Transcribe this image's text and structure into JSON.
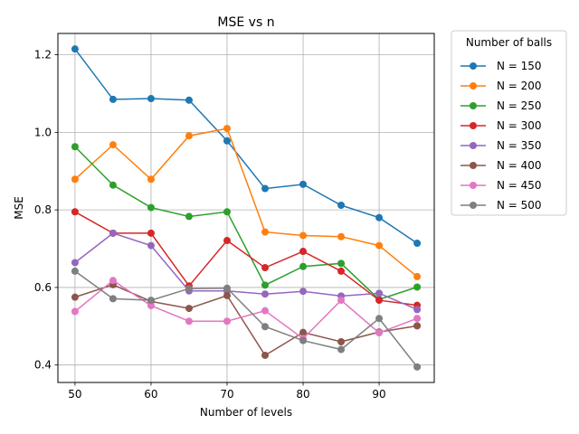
{
  "chart_data": {
    "type": "line",
    "title": "MSE vs n",
    "xlabel": "Number of levels",
    "ylabel": "MSE",
    "xlim": [
      47.75,
      97.25
    ],
    "ylim": [
      0.355,
      1.255
    ],
    "xticks": [
      50,
      60,
      70,
      80,
      90
    ],
    "yticks": [
      0.4,
      0.6,
      0.8,
      1.0,
      1.2
    ],
    "ytick_labels": [
      "0.4",
      "0.6",
      "0.8",
      "1.0",
      "1.2"
    ],
    "grid": true,
    "legend": {
      "title": "Number of balls",
      "placement": "outside-right-top"
    },
    "x": [
      50,
      55,
      60,
      65,
      70,
      75,
      80,
      85,
      90,
      95
    ],
    "series": [
      {
        "name": "N = 150",
        "color": "#1f77b4",
        "values": [
          1.215,
          1.085,
          1.087,
          1.083,
          0.978,
          0.855,
          0.866,
          0.812,
          0.78,
          0.714
        ]
      },
      {
        "name": "N = 200",
        "color": "#ff7f0e",
        "values": [
          0.879,
          0.968,
          0.879,
          0.991,
          1.01,
          0.743,
          0.734,
          0.731,
          0.708,
          0.628
        ]
      },
      {
        "name": "N = 250",
        "color": "#2ca02c",
        "values": [
          0.963,
          0.864,
          0.806,
          0.783,
          0.795,
          0.606,
          0.654,
          0.662,
          0.569,
          0.601
        ]
      },
      {
        "name": "N = 300",
        "color": "#d62728",
        "values": [
          0.795,
          0.74,
          0.74,
          0.604,
          0.721,
          0.651,
          0.693,
          0.642,
          0.567,
          0.554
        ]
      },
      {
        "name": "N = 350",
        "color": "#9467bd",
        "values": [
          0.664,
          0.74,
          0.708,
          0.591,
          0.591,
          0.583,
          0.59,
          0.578,
          0.585,
          0.543
        ]
      },
      {
        "name": "N = 400",
        "color": "#8c564b",
        "values": [
          0.575,
          0.607,
          0.564,
          0.546,
          0.579,
          0.425,
          0.484,
          0.46,
          0.485,
          0.501
        ]
      },
      {
        "name": "N = 450",
        "color": "#e377c2",
        "values": [
          0.538,
          0.618,
          0.553,
          0.513,
          0.513,
          0.54,
          0.468,
          0.567,
          0.483,
          0.52
        ]
      },
      {
        "name": "N = 500",
        "color": "#7f7f7f",
        "values": [
          0.642,
          0.571,
          0.567,
          0.597,
          0.598,
          0.499,
          0.463,
          0.44,
          0.52,
          0.395
        ]
      }
    ]
  }
}
